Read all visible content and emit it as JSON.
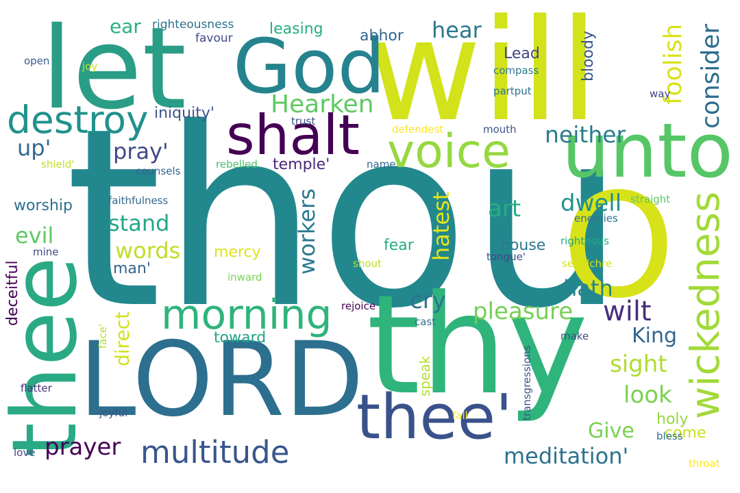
{
  "words": [
    {
      "text": "thou",
      "color": "#23888e"
    },
    {
      "text": "will",
      "color": "#d2e21b"
    },
    {
      "text": "let",
      "color": "#2a9d86"
    },
    {
      "text": "thy",
      "color": "#2fb47c"
    },
    {
      "text": "LORD",
      "color": "#2d6f8e"
    },
    {
      "text": "O",
      "color": "#d8e219"
    },
    {
      "text": "thee",
      "color": "#2aa985"
    },
    {
      "text": "God",
      "color": "#25838e"
    },
    {
      "text": "unto",
      "color": "#56c667"
    },
    {
      "text": "thee'",
      "color": "#3a528b"
    },
    {
      "text": "shalt",
      "color": "#440154"
    },
    {
      "text": "voice",
      "color": "#95d840"
    },
    {
      "text": "wickedness",
      "color": "#a2da37"
    },
    {
      "text": "morning",
      "color": "#2fb47c"
    },
    {
      "text": "destroy",
      "color": "#21918c"
    },
    {
      "text": "multitude",
      "color": "#39568c"
    },
    {
      "text": "Hearken",
      "color": "#5ec962"
    },
    {
      "text": "foolish",
      "color": "#d8e219"
    },
    {
      "text": "consider",
      "color": "#2e6e8e"
    },
    {
      "text": "neither",
      "color": "#287c8e"
    },
    {
      "text": "hatest",
      "color": "#e5e419"
    },
    {
      "text": "workers",
      "color": "#2a788e"
    },
    {
      "text": "wilt",
      "color": "#472f7d"
    },
    {
      "text": "pleasure",
      "color": "#75d054"
    },
    {
      "text": "prayer",
      "color": "#440154"
    },
    {
      "text": "meditation'",
      "color": "#2c728e"
    },
    {
      "text": "hear",
      "color": "#2a788e"
    },
    {
      "text": "stand",
      "color": "#22a884"
    },
    {
      "text": "words",
      "color": "#bddf26"
    },
    {
      "text": "pray'",
      "color": "#3e4989"
    },
    {
      "text": "art",
      "color": "#26ad81"
    },
    {
      "text": "dwell",
      "color": "#21918c"
    },
    {
      "text": "cry",
      "color": "#2c728e"
    },
    {
      "text": "hath",
      "color": "#26828e"
    },
    {
      "text": "sight",
      "color": "#b0dd2f"
    },
    {
      "text": "look",
      "color": "#7ad151"
    },
    {
      "text": "evil",
      "color": "#5ec962"
    },
    {
      "text": "up'",
      "color": "#31688e"
    },
    {
      "text": "King",
      "color": "#32658e"
    },
    {
      "text": "Give",
      "color": "#7ad151"
    },
    {
      "text": "direct",
      "color": "#d2e21b"
    },
    {
      "text": "ear",
      "color": "#2ab07f"
    },
    {
      "text": "bloody",
      "color": "#39568c"
    },
    {
      "text": "Lead",
      "color": "#414487"
    },
    {
      "text": "leasing",
      "color": "#26ad81"
    },
    {
      "text": "abhor",
      "color": "#31688e"
    },
    {
      "text": "iniquity'",
      "color": "#3b528b"
    },
    {
      "text": "worship",
      "color": "#2c728e"
    },
    {
      "text": "deceitful",
      "color": "#440154"
    },
    {
      "text": "temple'",
      "color": "#482878"
    },
    {
      "text": "house",
      "color": "#2a788e"
    },
    {
      "text": "fear",
      "color": "#26ad81"
    },
    {
      "text": "man'",
      "color": "#33638d"
    },
    {
      "text": "mercy",
      "color": "#dde318"
    },
    {
      "text": "toward",
      "color": "#21a585"
    },
    {
      "text": "speak",
      "color": "#b5de2b"
    },
    {
      "text": "holy",
      "color": "#95d840"
    },
    {
      "text": "come",
      "color": "#c8e020"
    },
    {
      "text": "righteousness",
      "color": "#2c728e"
    },
    {
      "text": "favour",
      "color": "#3e4989"
    },
    {
      "text": "open",
      "color": "#365c8d"
    },
    {
      "text": "joy",
      "color": "#c2df23"
    },
    {
      "text": "compass",
      "color": "#2a788e"
    },
    {
      "text": "partput",
      "color": "#2c728e"
    },
    {
      "text": "way",
      "color": "#404588"
    },
    {
      "text": "trust",
      "color": "#3b528b"
    },
    {
      "text": "defendest",
      "color": "#fde725"
    },
    {
      "text": "mouth",
      "color": "#3b528b"
    },
    {
      "text": "shield'",
      "color": "#c2df23"
    },
    {
      "text": "rebelled",
      "color": "#4ac16d"
    },
    {
      "text": "name",
      "color": "#31688e"
    },
    {
      "text": "counsels",
      "color": "#33638d"
    },
    {
      "text": "faithfulness",
      "color": "#31688e"
    },
    {
      "text": "straight",
      "color": "#5ec962"
    },
    {
      "text": "enemies",
      "color": "#2c728e"
    },
    {
      "text": "righteous",
      "color": "#22a884"
    },
    {
      "text": "mine",
      "color": "#3e4989"
    },
    {
      "text": "tongue'",
      "color": "#3e4989"
    },
    {
      "text": "sepulchre",
      "color": "#d2e21b"
    },
    {
      "text": "inward",
      "color": "#7ad151"
    },
    {
      "text": "shout",
      "color": "#bddf26"
    },
    {
      "text": "rejoice",
      "color": "#440154"
    },
    {
      "text": "cast",
      "color": "#2c728e"
    },
    {
      "text": "make",
      "color": "#3e4989"
    },
    {
      "text": "face'",
      "color": "#b5de2b"
    },
    {
      "text": "transgressions",
      "color": "#3a528b"
    },
    {
      "text": "flatter",
      "color": "#472f7d"
    },
    {
      "text": "joyful",
      "color": "#3b528b"
    },
    {
      "text": "fall",
      "color": "#fde725"
    },
    {
      "text": "bless",
      "color": "#2c728e"
    },
    {
      "text": "love",
      "color": "#414487"
    },
    {
      "text": "throat",
      "color": "#fde725"
    }
  ]
}
